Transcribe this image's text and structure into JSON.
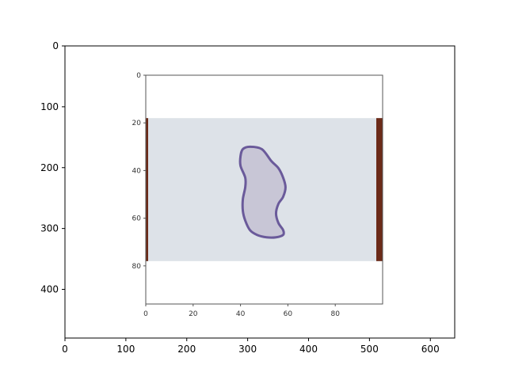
{
  "chart_data": [
    {
      "type": "image",
      "role": "outer-axes",
      "xlim": [
        0,
        640
      ],
      "ylim": [
        480,
        0
      ],
      "x_ticks": [
        0,
        100,
        200,
        300,
        400,
        500,
        600
      ],
      "y_ticks": [
        0,
        100,
        200,
        300,
        400
      ],
      "grid": false,
      "colors": {
        "axes": "#000000",
        "background": "#ffffff"
      }
    },
    {
      "type": "image",
      "role": "embedded-axes",
      "xlim": [
        0,
        100
      ],
      "ylim": [
        96,
        0
      ],
      "x_ticks": [
        0,
        20,
        40,
        60,
        80
      ],
      "y_ticks": [
        0,
        20,
        40,
        60,
        80
      ],
      "grid": false,
      "image_rows": [
        18,
        78
      ],
      "image_cols": [
        0,
        100
      ],
      "shape_outline": [
        [
          44,
          30
        ],
        [
          49,
          31
        ],
        [
          53,
          36
        ],
        [
          56,
          39
        ],
        [
          58,
          43
        ],
        [
          59,
          47
        ],
        [
          58,
          51
        ],
        [
          56,
          54
        ],
        [
          55,
          58
        ],
        [
          56,
          62
        ],
        [
          58,
          65
        ],
        [
          58,
          67
        ],
        [
          55,
          68
        ],
        [
          51,
          68
        ],
        [
          47,
          67
        ],
        [
          44,
          65
        ],
        [
          42,
          61
        ],
        [
          41,
          57
        ],
        [
          41,
          52
        ],
        [
          42,
          47
        ],
        [
          42,
          43
        ],
        [
          40,
          38
        ],
        [
          40,
          34
        ],
        [
          41,
          31
        ]
      ],
      "colors": {
        "card": "#dde2e8",
        "shape_fill": "#c8c6d6",
        "shape_outline": "#6a5a9a",
        "edge_dark": "#6b2a18",
        "axes": "#555555"
      }
    }
  ]
}
